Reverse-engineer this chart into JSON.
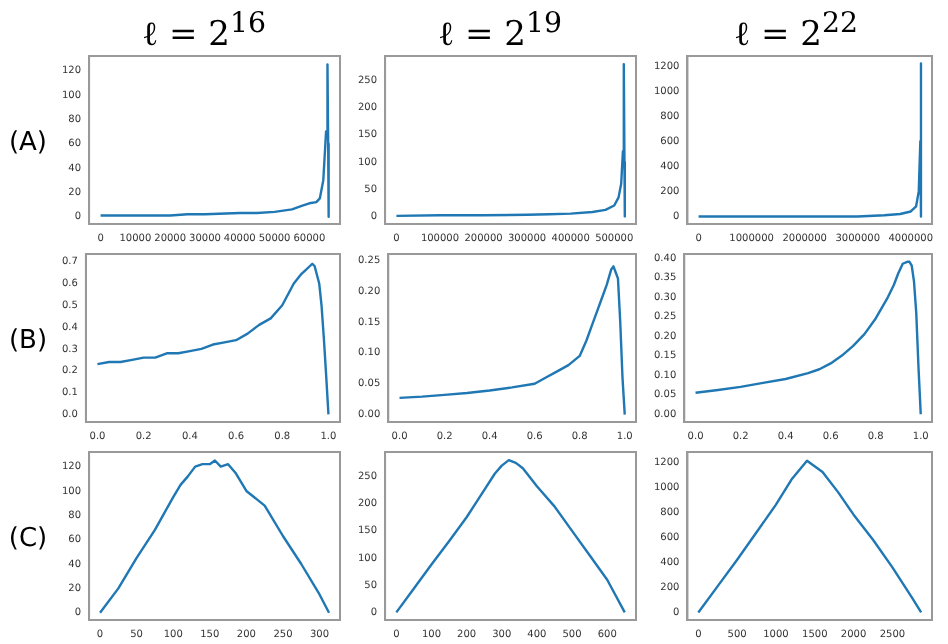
{
  "chart_data": [
    {
      "type": "line",
      "title": "ℓ = 2$^{16}$",
      "ylabel": "(A)",
      "series": [
        {
          "color": "#1f77b4",
          "x": [
            0,
            5000,
            10000,
            20000,
            25000,
            30000,
            40000,
            45000,
            50000,
            55000,
            58000,
            60000,
            62000,
            63000,
            64000,
            64800,
            65200,
            65400,
            65536
          ],
          "values": [
            1,
            1,
            1,
            1,
            2,
            2,
            3,
            3,
            4,
            6,
            9,
            11,
            12,
            15,
            30,
            70,
            125,
            60,
            0
          ]
        }
      ],
      "xlim": [
        -3300,
        68800
      ],
      "xticks": [
        0,
        10000,
        20000,
        30000,
        40000,
        50000,
        60000
      ],
      "ylim": [
        -6,
        132
      ],
      "yticks": [
        0,
        20,
        40,
        60,
        80,
        100,
        120
      ]
    },
    {
      "type": "line",
      "title": "ℓ = 2$^{19}$",
      "series": [
        {
          "color": "#1f77b4",
          "x": [
            0,
            100000,
            200000,
            300000,
            350000,
            400000,
            450000,
            480000,
            500000,
            510000,
            516000,
            520000,
            522000,
            523500,
            524288
          ],
          "values": [
            1,
            2,
            2,
            3,
            4,
            5,
            8,
            12,
            20,
            35,
            60,
            120,
            280,
            100,
            0
          ]
        }
      ],
      "xlim": [
        -26000,
        550000
      ],
      "xticks": [
        0,
        100000,
        200000,
        300000,
        400000,
        500000
      ],
      "ylim": [
        -14,
        295
      ],
      "yticks": [
        0,
        50,
        100,
        150,
        200,
        250
      ]
    },
    {
      "type": "line",
      "title": "ℓ = 2$^{22}$",
      "series": [
        {
          "color": "#1f77b4",
          "x": [
            0,
            1000000,
            2000000,
            3000000,
            3500000,
            3800000,
            4000000,
            4100000,
            4150000,
            4180000,
            4190000,
            4194304
          ],
          "values": [
            0,
            0,
            0,
            0,
            10,
            20,
            40,
            80,
            200,
            600,
            1220,
            0
          ]
        }
      ],
      "xlim": [
        -210000,
        4400000
      ],
      "xticks": [
        0,
        1000000,
        2000000,
        3000000,
        4000000
      ],
      "ylim": [
        -60,
        1280
      ],
      "yticks": [
        0,
        200,
        400,
        600,
        800,
        1000,
        1200
      ]
    },
    {
      "type": "line",
      "ylabel": "(B)",
      "series": [
        {
          "color": "#1f77b4",
          "x": [
            0,
            0.05,
            0.1,
            0.15,
            0.2,
            0.25,
            0.3,
            0.35,
            0.4,
            0.45,
            0.5,
            0.55,
            0.6,
            0.65,
            0.7,
            0.75,
            0.8,
            0.85,
            0.88,
            0.9,
            0.92,
            0.93,
            0.94,
            0.96,
            0.97,
            0.98,
            0.99,
            1.0
          ],
          "values": [
            0.23,
            0.24,
            0.24,
            0.25,
            0.26,
            0.26,
            0.28,
            0.28,
            0.29,
            0.3,
            0.32,
            0.33,
            0.34,
            0.37,
            0.41,
            0.44,
            0.5,
            0.6,
            0.64,
            0.66,
            0.68,
            0.69,
            0.68,
            0.6,
            0.5,
            0.35,
            0.18,
            0.0
          ]
        }
      ],
      "xlim": [
        -0.05,
        1.05
      ],
      "xticks": [
        {
          "value": 0,
          "label": "0.0"
        },
        {
          "value": 0.2,
          "label": "0.2"
        },
        {
          "value": 0.4,
          "label": "0.4"
        },
        {
          "value": 0.6,
          "label": "0.6"
        },
        {
          "value": 0.8,
          "label": "0.8"
        },
        {
          "value": 1,
          "label": "1.0"
        }
      ],
      "ylim": [
        -0.035,
        0.735
      ],
      "yticks": [
        {
          "value": 0,
          "label": "0.0"
        },
        0.1,
        0.2,
        0.3,
        0.4,
        0.5,
        0.6,
        0.7
      ]
    },
    {
      "type": "line",
      "series": [
        {
          "color": "#1f77b4",
          "x": [
            0,
            0.1,
            0.2,
            0.3,
            0.4,
            0.5,
            0.6,
            0.65,
            0.7,
            0.75,
            0.8,
            0.83,
            0.86,
            0.88,
            0.9,
            0.92,
            0.94,
            0.95,
            0.96,
            0.97,
            0.98,
            0.99,
            1.0
          ],
          "values": [
            0.027,
            0.029,
            0.032,
            0.035,
            0.039,
            0.044,
            0.05,
            0.06,
            0.07,
            0.08,
            0.095,
            0.12,
            0.15,
            0.17,
            0.19,
            0.21,
            0.235,
            0.24,
            0.23,
            0.22,
            0.15,
            0.06,
            0.0
          ]
        }
      ],
      "xlim": [
        -0.05,
        1.05
      ],
      "xticks": [
        {
          "value": 0,
          "label": "0.0"
        },
        {
          "value": 0.2,
          "label": "0.2"
        },
        {
          "value": 0.4,
          "label": "0.4"
        },
        {
          "value": 0.6,
          "label": "0.6"
        },
        {
          "value": 0.8,
          "label": "0.8"
        },
        {
          "value": 1,
          "label": "1.0"
        }
      ],
      "ylim": [
        -0.012,
        0.26
      ],
      "yticks": [
        {
          "value": 0,
          "label": "0.00"
        },
        0.05,
        {
          "value": 0.1,
          "label": "0.10"
        },
        0.15,
        {
          "value": 0.2,
          "label": "0.20"
        },
        0.25
      ]
    },
    {
      "type": "line",
      "series": [
        {
          "color": "#1f77b4",
          "x": [
            0,
            0.1,
            0.2,
            0.3,
            0.4,
            0.5,
            0.55,
            0.6,
            0.65,
            0.7,
            0.75,
            0.8,
            0.85,
            0.88,
            0.9,
            0.92,
            0.94,
            0.95,
            0.96,
            0.97,
            0.98,
            0.99,
            1.0
          ],
          "values": [
            0.055,
            0.062,
            0.07,
            0.08,
            0.09,
            0.105,
            0.115,
            0.13,
            0.15,
            0.175,
            0.205,
            0.245,
            0.295,
            0.33,
            0.36,
            0.385,
            0.39,
            0.39,
            0.38,
            0.34,
            0.26,
            0.12,
            0.0
          ]
        }
      ],
      "xlim": [
        -0.05,
        1.05
      ],
      "xticks": [
        {
          "value": 0,
          "label": "0.0"
        },
        {
          "value": 0.2,
          "label": "0.2"
        },
        {
          "value": 0.4,
          "label": "0.4"
        },
        {
          "value": 0.6,
          "label": "0.6"
        },
        {
          "value": 0.8,
          "label": "0.8"
        },
        {
          "value": 1,
          "label": "1.0"
        }
      ],
      "ylim": [
        -0.02,
        0.41
      ],
      "yticks": [
        {
          "value": 0,
          "label": "0.00"
        },
        0.05,
        {
          "value": 0.1,
          "label": "0.10"
        },
        0.15,
        {
          "value": 0.2,
          "label": "0.20"
        },
        0.25,
        {
          "value": 0.3,
          "label": "0.30"
        },
        0.35,
        {
          "value": 0.4,
          "label": "0.40"
        }
      ]
    },
    {
      "type": "line",
      "ylabel": "(C)",
      "series": [
        {
          "color": "#1f77b4",
          "x": [
            0,
            25,
            50,
            75,
            100,
            110,
            120,
            130,
            140,
            150,
            157,
            165,
            175,
            185,
            200,
            225,
            250,
            275,
            300,
            313
          ],
          "values": [
            0,
            20,
            45,
            68,
            95,
            105,
            112,
            120,
            122,
            122,
            125,
            120,
            122,
            115,
            100,
            88,
            63,
            40,
            15,
            0
          ]
        }
      ],
      "xlim": [
        -15,
        328
      ],
      "xticks": [
        0,
        50,
        100,
        150,
        200,
        250,
        300
      ],
      "ylim": [
        -6,
        132
      ],
      "yticks": [
        0,
        20,
        40,
        60,
        80,
        100,
        120
      ]
    },
    {
      "type": "line",
      "series": [
        {
          "color": "#1f77b4",
          "x": [
            0,
            50,
            100,
            150,
            200,
            250,
            280,
            300,
            320,
            340,
            360,
            400,
            450,
            500,
            550,
            600,
            650
          ],
          "values": [
            0,
            44,
            88,
            131,
            175,
            225,
            255,
            270,
            280,
            275,
            265,
            232,
            195,
            150,
            105,
            60,
            0
          ]
        }
      ],
      "xlim": [
        -32,
        682
      ],
      "xticks": [
        0,
        100,
        200,
        300,
        400,
        500,
        600
      ],
      "ylim": [
        -14,
        295
      ],
      "yticks": [
        0,
        50,
        100,
        150,
        200,
        250
      ]
    },
    {
      "type": "line",
      "series": [
        {
          "color": "#1f77b4",
          "x": [
            0,
            250,
            500,
            750,
            1000,
            1200,
            1400,
            1600,
            1800,
            2000,
            2250,
            2500,
            2750,
            2870
          ],
          "values": [
            0,
            210,
            420,
            640,
            860,
            1060,
            1210,
            1120,
            960,
            780,
            580,
            360,
            120,
            0
          ]
        }
      ],
      "xlim": [
        -140,
        3010
      ],
      "xticks": [
        0,
        500,
        1000,
        1500,
        2000,
        2500
      ],
      "ylim": [
        -60,
        1280
      ],
      "yticks": [
        0,
        200,
        400,
        600,
        800,
        1000,
        1200
      ]
    }
  ]
}
